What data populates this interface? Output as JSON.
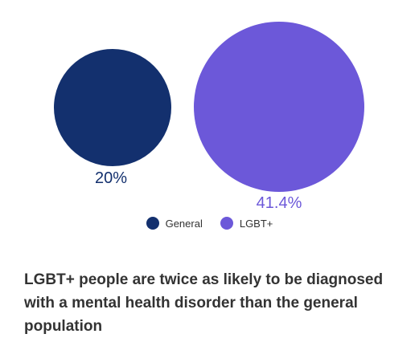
{
  "chart_data": {
    "type": "bubble",
    "series": [
      {
        "name": "General",
        "value": 20,
        "label": "20%",
        "color": "#13306e"
      },
      {
        "name": "LGBT+",
        "value": 41.4,
        "label": "41.4%",
        "color": "#6c58d9"
      }
    ],
    "legend_position": "bottom-center",
    "caption": "LGBT+ people are twice as likely to be diagnosed with a mental health disorder than the general population"
  }
}
